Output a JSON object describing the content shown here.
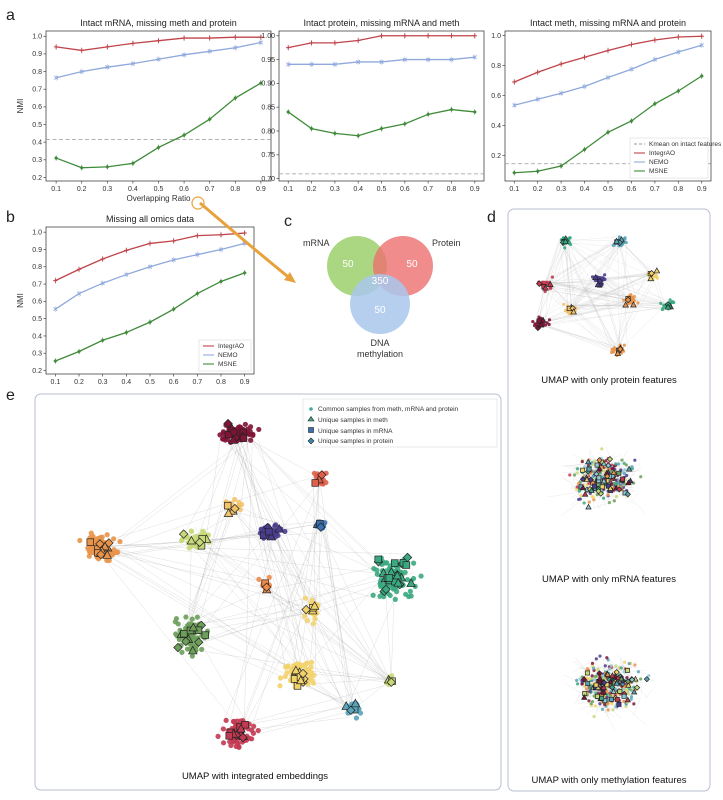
{
  "panels": {
    "a": "a",
    "b": "b",
    "c": "c",
    "d": "d",
    "e": "e"
  },
  "colors": {
    "IntegrAO": "#c0444a",
    "NEMO": "#8fa9dc",
    "MSNE": "#3f8b3a",
    "kmean": "#999999",
    "arrow": "#e8a23c"
  },
  "chart_data": [
    {
      "type": "line",
      "title": "Intact mRNA, missing meth and protein",
      "xlabel": "Overlapping Ratio",
      "ylabel": "NMI",
      "x": [
        0.1,
        0.2,
        0.3,
        0.4,
        0.5,
        0.6,
        0.7,
        0.8,
        0.9
      ],
      "xticks": [
        "0.1",
        "0.2",
        "0.3",
        "0.4",
        "0.5",
        "0.6",
        "0.7",
        "0.8",
        "0.9"
      ],
      "ylim": [
        0.18,
        1.03
      ],
      "yticks": [
        "0.2",
        "0.3",
        "0.4",
        "0.5",
        "0.6",
        "0.7",
        "0.8",
        "0.9",
        "1.0"
      ],
      "baseline": 0.415,
      "series": [
        {
          "name": "IntegrAO",
          "values": [
            0.94,
            0.92,
            0.94,
            0.96,
            0.975,
            0.99,
            0.99,
            0.995,
            0.995
          ]
        },
        {
          "name": "NEMO",
          "values": [
            0.765,
            0.8,
            0.825,
            0.845,
            0.87,
            0.895,
            0.915,
            0.935,
            0.965
          ]
        },
        {
          "name": "MSNE",
          "values": [
            0.31,
            0.255,
            0.26,
            0.28,
            0.37,
            0.44,
            0.53,
            0.65,
            0.735
          ]
        }
      ]
    },
    {
      "type": "line",
      "title": "Intact protein, missing mRNA and meth",
      "xlabel": "",
      "ylabel": "",
      "x": [
        0.1,
        0.2,
        0.3,
        0.4,
        0.5,
        0.6,
        0.7,
        0.8,
        0.9
      ],
      "xticks": [
        "0.1",
        "0.2",
        "0.3",
        "0.4",
        "0.5",
        "0.6",
        "0.7",
        "0.8",
        "0.9"
      ],
      "ylim": [
        0.695,
        1.01
      ],
      "yticks": [
        "0.70",
        "0.75",
        "0.80",
        "0.85",
        "0.90",
        "0.95",
        "1.00"
      ],
      "baseline": 0.71,
      "series": [
        {
          "name": "IntegrAO",
          "values": [
            0.975,
            0.985,
            0.985,
            0.99,
            1.0,
            1.0,
            1.0,
            1.0,
            1.0
          ]
        },
        {
          "name": "NEMO",
          "values": [
            0.94,
            0.94,
            0.94,
            0.945,
            0.945,
            0.95,
            0.95,
            0.95,
            0.955
          ]
        },
        {
          "name": "MSNE",
          "values": [
            0.84,
            0.805,
            0.795,
            0.79,
            0.805,
            0.815,
            0.835,
            0.845,
            0.84
          ]
        }
      ]
    },
    {
      "type": "line",
      "title": "Intact meth, missing mRNA and protein",
      "xlabel": "",
      "ylabel": "",
      "x": [
        0.1,
        0.2,
        0.3,
        0.4,
        0.5,
        0.6,
        0.7,
        0.8,
        0.9
      ],
      "xticks": [
        "0.1",
        "0.2",
        "0.3",
        "0.4",
        "0.5",
        "0.6",
        "0.7",
        "0.8",
        "0.9"
      ],
      "ylim": [
        0.03,
        1.03
      ],
      "yticks": [
        "0.2",
        "0.4",
        "0.6",
        "0.8",
        "1.0"
      ],
      "baseline": 0.145,
      "legend": [
        "Kmean on intact features",
        "IntegrAO",
        "NEMO",
        "MSNE"
      ],
      "series": [
        {
          "name": "IntegrAO",
          "values": [
            0.69,
            0.755,
            0.81,
            0.855,
            0.9,
            0.94,
            0.97,
            0.99,
            0.995
          ]
        },
        {
          "name": "NEMO",
          "values": [
            0.535,
            0.575,
            0.615,
            0.66,
            0.72,
            0.775,
            0.84,
            0.89,
            0.935
          ]
        },
        {
          "name": "MSNE",
          "values": [
            0.085,
            0.095,
            0.13,
            0.24,
            0.355,
            0.43,
            0.545,
            0.63,
            0.73
          ]
        }
      ]
    },
    {
      "type": "line",
      "title": "Missing all omics data",
      "xlabel": "",
      "ylabel": "NMI",
      "x": [
        0.1,
        0.2,
        0.3,
        0.4,
        0.5,
        0.6,
        0.7,
        0.8,
        0.9
      ],
      "xticks": [
        "0.1",
        "0.2",
        "0.3",
        "0.4",
        "0.5",
        "0.6",
        "0.7",
        "0.8",
        "0.9"
      ],
      "ylim": [
        0.18,
        1.03
      ],
      "yticks": [
        "0.2",
        "0.3",
        "0.4",
        "0.5",
        "0.6",
        "0.7",
        "0.8",
        "0.9",
        "1.0"
      ],
      "legend": [
        "IntegrAO",
        "NEMO",
        "MSNE"
      ],
      "series": [
        {
          "name": "IntegrAO",
          "values": [
            0.72,
            0.785,
            0.845,
            0.895,
            0.935,
            0.95,
            0.98,
            0.985,
            0.995
          ]
        },
        {
          "name": "NEMO",
          "values": [
            0.555,
            0.645,
            0.705,
            0.755,
            0.8,
            0.84,
            0.87,
            0.9,
            0.935
          ]
        },
        {
          "name": "MSNE",
          "values": [
            0.255,
            0.31,
            0.375,
            0.42,
            0.48,
            0.555,
            0.645,
            0.715,
            0.765
          ]
        }
      ]
    }
  ],
  "venn": {
    "mrna": "mRNA",
    "protein": "Protein",
    "meth_line1": "DNA",
    "meth_line2": "methylation",
    "n_mrna": "50",
    "n_protein": "50",
    "n_meth": "50",
    "n_center": "350"
  },
  "umap_d": {
    "cap1": "UMAP with only protein features",
    "cap2": "UMAP with only mRNA features",
    "cap3": "UMAP with only methylation features"
  },
  "umap_e": {
    "caption": "UMAP with integrated embeddings",
    "legend": [
      "Common samples from meth, mRNA and protein",
      "Unique samples in meth",
      "Unique samples in mRNA",
      "Unique samples in protein"
    ]
  },
  "cluster_colors": [
    "#7e1436",
    "#e8934a",
    "#5aa3b8",
    "#f2d36b",
    "#6d9f5a",
    "#4a3d8f",
    "#c8d97a",
    "#3aa880",
    "#c23a52",
    "#8fc8d6"
  ]
}
